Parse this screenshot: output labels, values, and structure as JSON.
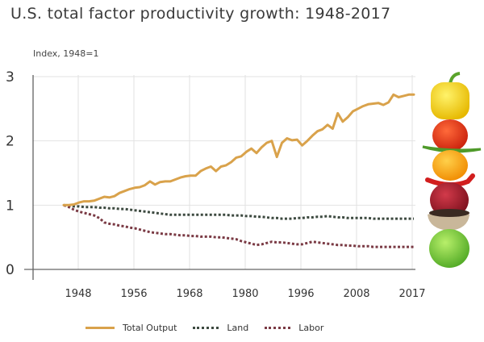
{
  "chart_data": {
    "type": "line",
    "title": "U.S. total factor productivity growth: 1948-2017",
    "ylabel": "Index, 1948=1",
    "xlabel": "",
    "ylim": [
      0,
      3
    ],
    "xlim": [
      1948,
      2017
    ],
    "yticks": [
      "0",
      "1",
      "2",
      "3"
    ],
    "xticks": [
      "1948",
      "1956",
      "1968",
      "1980",
      "1996",
      "2008",
      "2017"
    ],
    "grid": true,
    "legend_position": "bottom",
    "x": [
      1948,
      1949,
      1950,
      1951,
      1952,
      1953,
      1954,
      1955,
      1956,
      1957,
      1958,
      1959,
      1960,
      1961,
      1962,
      1963,
      1964,
      1965,
      1966,
      1967,
      1968,
      1969,
      1970,
      1971,
      1972,
      1973,
      1974,
      1975,
      1976,
      1977,
      1978,
      1979,
      1980,
      1981,
      1982,
      1983,
      1984,
      1985,
      1986,
      1987,
      1988,
      1989,
      1990,
      1991,
      1992,
      1993,
      1994,
      1995,
      1996,
      1997,
      1998,
      1999,
      2000,
      2001,
      2002,
      2003,
      2004,
      2005,
      2006,
      2007,
      2008,
      2009,
      2010,
      2011,
      2012,
      2013,
      2014,
      2015,
      2016,
      2017
    ],
    "series": [
      {
        "name": "Total Output",
        "color": "#D9A24B",
        "style": "solid",
        "values": [
          1.0,
          1.0,
          1.01,
          1.04,
          1.06,
          1.06,
          1.07,
          1.1,
          1.13,
          1.12,
          1.14,
          1.19,
          1.22,
          1.25,
          1.27,
          1.28,
          1.31,
          1.37,
          1.32,
          1.36,
          1.37,
          1.37,
          1.4,
          1.43,
          1.45,
          1.46,
          1.46,
          1.53,
          1.57,
          1.6,
          1.53,
          1.6,
          1.62,
          1.67,
          1.74,
          1.76,
          1.83,
          1.88,
          1.81,
          1.9,
          1.97,
          2.0,
          1.75,
          1.97,
          2.04,
          2.01,
          2.02,
          1.93,
          2.0,
          2.08,
          2.15,
          2.18,
          2.25,
          2.19,
          2.43,
          2.3,
          2.37,
          2.46,
          2.5,
          2.54,
          2.57,
          2.58,
          2.59,
          2.56,
          2.6,
          2.72,
          2.68,
          2.7,
          2.72,
          2.72
        ]
      },
      {
        "name": "Land",
        "color": "#3D4A40",
        "style": "dotted",
        "values": [
          1.0,
          0.99,
          0.98,
          0.98,
          0.97,
          0.97,
          0.97,
          0.96,
          0.96,
          0.95,
          0.95,
          0.94,
          0.94,
          0.93,
          0.92,
          0.91,
          0.9,
          0.89,
          0.88,
          0.87,
          0.86,
          0.85,
          0.85,
          0.85,
          0.85,
          0.85,
          0.85,
          0.85,
          0.85,
          0.85,
          0.85,
          0.85,
          0.85,
          0.84,
          0.84,
          0.84,
          0.83,
          0.83,
          0.82,
          0.82,
          0.81,
          0.8,
          0.8,
          0.79,
          0.79,
          0.79,
          0.8,
          0.8,
          0.81,
          0.81,
          0.82,
          0.82,
          0.83,
          0.82,
          0.81,
          0.81,
          0.8,
          0.8,
          0.8,
          0.8,
          0.8,
          0.79,
          0.79,
          0.79,
          0.79,
          0.79,
          0.79,
          0.79,
          0.79,
          0.79
        ]
      },
      {
        "name": "Labor",
        "color": "#7A3A44",
        "style": "dotted",
        "values": [
          1.0,
          0.97,
          0.93,
          0.9,
          0.88,
          0.86,
          0.84,
          0.8,
          0.73,
          0.71,
          0.7,
          0.68,
          0.67,
          0.65,
          0.64,
          0.62,
          0.6,
          0.58,
          0.57,
          0.56,
          0.55,
          0.55,
          0.54,
          0.53,
          0.53,
          0.52,
          0.52,
          0.51,
          0.51,
          0.51,
          0.5,
          0.5,
          0.49,
          0.48,
          0.47,
          0.44,
          0.42,
          0.4,
          0.38,
          0.39,
          0.41,
          0.43,
          0.42,
          0.42,
          0.41,
          0.4,
          0.39,
          0.39,
          0.41,
          0.43,
          0.42,
          0.41,
          0.4,
          0.39,
          0.38,
          0.38,
          0.37,
          0.37,
          0.36,
          0.36,
          0.36,
          0.35,
          0.35,
          0.35,
          0.35,
          0.35,
          0.35,
          0.35,
          0.35,
          0.35
        ]
      }
    ]
  },
  "legend": {
    "items": [
      {
        "label": "Total Output"
      },
      {
        "label": "Land"
      },
      {
        "label": "Labor"
      }
    ]
  },
  "illustration": {
    "description": "stack of vegetables and fruits"
  }
}
